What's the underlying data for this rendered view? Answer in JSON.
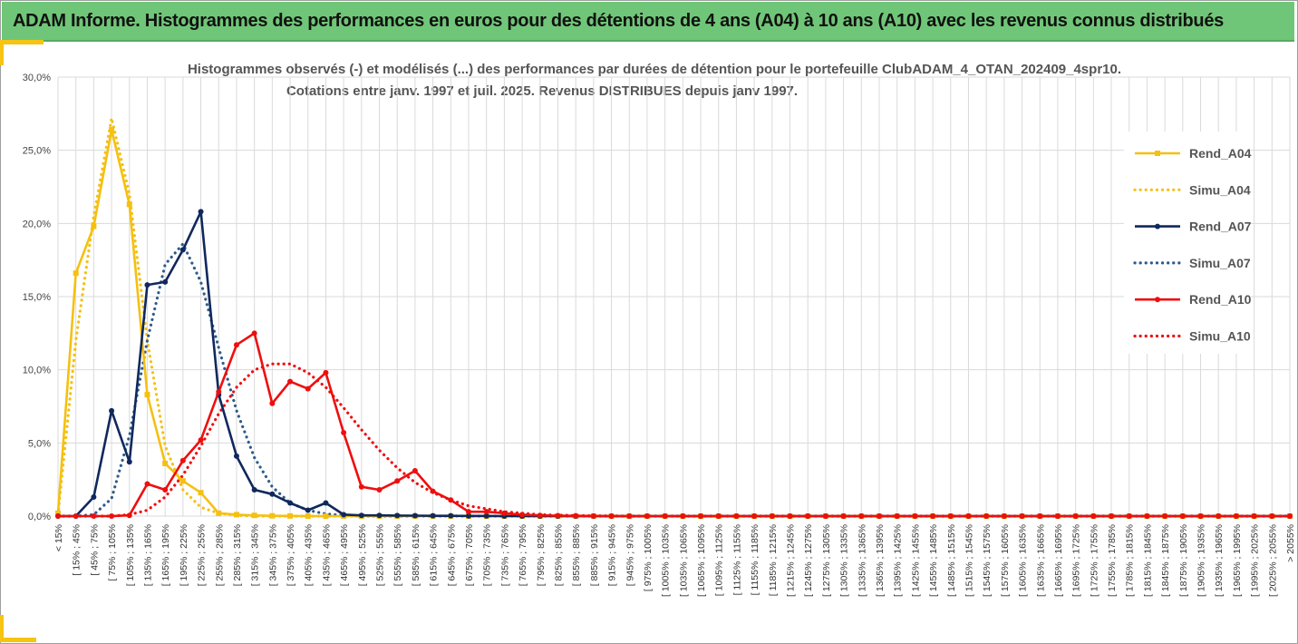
{
  "banner": {
    "title": "ADAM Informe. Histogrammes des performances en euros pour des détentions de 4 ans (A04) à 10 ans (A10) avec les revenus connus distribués"
  },
  "chart_data": {
    "type": "line",
    "title": "Histogrammes observés (-) et modélisés (...) des performances par durées de détention pour le portefeuille ClubADAM_4_OTAN_202409_4spr10.",
    "subtitle": "Cotations entre janv. 1997 et juil. 2025. Revenus DISTRIBUES depuis janv 1997.",
    "xlabel": "",
    "ylabel": "",
    "ylim": [
      0,
      0.3
    ],
    "y_ticks": [
      "0,0%",
      "5,0%",
      "10,0%",
      "15,0%",
      "20,0%",
      "25,0%",
      "30,0%"
    ],
    "grid": true,
    "legend_position": "right",
    "categories": [
      "< 15%",
      "[ 15% ; 45%",
      "[ 45% ; 75%",
      "[ 75% ; 105%",
      "[ 105% ; 135%",
      "[ 135% ; 165%",
      "[ 165% ; 195%",
      "[ 195% ; 225%",
      "[ 225% ; 255%",
      "[ 255% ; 285%",
      "[ 285% ; 315%",
      "[ 315% ; 345%",
      "[ 345% ; 375%",
      "[ 375% ; 405%",
      "[ 405% ; 435%",
      "[ 435% ; 465%",
      "[ 465% ; 495%",
      "[ 495% ; 525%",
      "[ 525% ; 555%",
      "[ 555% ; 585%",
      "[ 585% ; 615%",
      "[ 615% ; 645%",
      "[ 645% ; 675%",
      "[ 675% ; 705%",
      "[ 705% ; 735%",
      "[ 735% ; 765%",
      "[ 765% ; 795%",
      "[ 795% ; 825%",
      "[ 825% ; 855%",
      "[ 855% ; 885%",
      "[ 885% ; 915%",
      "[ 915% ; 945%",
      "[ 945% ; 975%",
      "[ 975% ; 1005%",
      "[ 1005% ; 1035%",
      "[ 1035% ; 1065%",
      "[ 1065% ; 1095%",
      "[ 1095% ; 1125%",
      "[ 1125% ; 1155%",
      "[ 1155% ; 1185%",
      "[ 1185% ; 1215%",
      "[ 1215% ; 1245%",
      "[ 1245% ; 1275%",
      "[ 1275% ; 1305%",
      "[ 1305% ; 1335%",
      "[ 1335% ; 1365%",
      "[ 1365% ; 1395%",
      "[ 1395% ; 1425%",
      "[ 1425% ; 1455%",
      "[ 1455% ; 1485%",
      "[ 1485% ; 1515%",
      "[ 1515% ; 1545%",
      "[ 1545% ; 1575%",
      "[ 1575% ; 1605%",
      "[ 1605% ; 1635%",
      "[ 1635% ; 1665%",
      "[ 1665% ; 1695%",
      "[ 1695% ; 1725%",
      "[ 1725% ; 1755%",
      "[ 1755% ; 1785%",
      "[ 1785% ; 1815%",
      "[ 1815% ; 1845%",
      "[ 1845% ; 1875%",
      "[ 1875% ; 1905%",
      "[ 1905% ; 1935%",
      "[ 1935% ; 1965%",
      "[ 1965% ; 1995%",
      "[ 1995% ; 2025%",
      "[ 2025% ; 2055%",
      "> 2055%"
    ],
    "series": [
      {
        "name": "Rend_A04",
        "style": "solid",
        "marker": "square",
        "color": "#f5c011",
        "values": [
          0.002,
          0.166,
          0.198,
          0.264,
          0.213,
          0.083,
          0.036,
          0.024,
          0.016,
          0.002,
          0.001,
          0.0005,
          0.0002,
          0.0001,
          0,
          0,
          0,
          0,
          0,
          0,
          0,
          0,
          0,
          0,
          0,
          0,
          0,
          0,
          0,
          0,
          0,
          0,
          0,
          0,
          0,
          0,
          0,
          0,
          0,
          0,
          0,
          0,
          0,
          0,
          0,
          0,
          0,
          0,
          0,
          0,
          0,
          0,
          0,
          0,
          0,
          0,
          0,
          0,
          0,
          0,
          0,
          0,
          0,
          0,
          0,
          0,
          0,
          0,
          0,
          0
        ]
      },
      {
        "name": "Simu_A04",
        "style": "dotted",
        "marker": "none",
        "color": "#f5c011",
        "values": [
          0.001,
          0.12,
          0.205,
          0.272,
          0.22,
          0.12,
          0.048,
          0.018,
          0.006,
          0.002,
          0.0005,
          0,
          0,
          0,
          0,
          0,
          0,
          0,
          0,
          0,
          0,
          0,
          0,
          0,
          0,
          0,
          0,
          0,
          0,
          0,
          0,
          0,
          0,
          0,
          0,
          0,
          0,
          0,
          0,
          0,
          0,
          0,
          0,
          0,
          0,
          0,
          0,
          0,
          0,
          0,
          0,
          0,
          0,
          0,
          0,
          0,
          0,
          0,
          0,
          0,
          0,
          0,
          0,
          0,
          0,
          0,
          0,
          0,
          0,
          0
        ]
      },
      {
        "name": "Rend_A07",
        "style": "solid",
        "marker": "circle",
        "color": "#10285c",
        "values": [
          0,
          0,
          0.013,
          0.072,
          0.037,
          0.158,
          0.16,
          0.182,
          0.208,
          0.083,
          0.041,
          0.018,
          0.015,
          0.009,
          0.004,
          0.009,
          0.001,
          0.0005,
          0.0005,
          0.0004,
          0.0003,
          0.0002,
          0.0002,
          0.0001,
          0.0001,
          0,
          0,
          0,
          0,
          0,
          0,
          0,
          0,
          0,
          0,
          0,
          0,
          0,
          0,
          0,
          0,
          0,
          0,
          0,
          0,
          0,
          0,
          0,
          0,
          0,
          0,
          0,
          0,
          0,
          0,
          0,
          0,
          0,
          0,
          0,
          0,
          0,
          0,
          0,
          0,
          0,
          0,
          0,
          0,
          0
        ]
      },
      {
        "name": "Simu_A07",
        "style": "dotted",
        "marker": "none",
        "color": "#2d5b8a",
        "values": [
          0,
          0,
          0.001,
          0.012,
          0.055,
          0.12,
          0.172,
          0.186,
          0.16,
          0.115,
          0.072,
          0.04,
          0.02,
          0.009,
          0.004,
          0.0015,
          0.0005,
          0.0002,
          0,
          0,
          0,
          0,
          0,
          0,
          0,
          0,
          0,
          0,
          0,
          0,
          0,
          0,
          0,
          0,
          0,
          0,
          0,
          0,
          0,
          0,
          0,
          0,
          0,
          0,
          0,
          0,
          0,
          0,
          0,
          0,
          0,
          0,
          0,
          0,
          0,
          0,
          0,
          0,
          0,
          0,
          0,
          0,
          0,
          0,
          0,
          0,
          0,
          0,
          0,
          0
        ]
      },
      {
        "name": "Rend_A10",
        "style": "solid",
        "marker": "circle",
        "color": "#ee0e0e",
        "values": [
          0,
          0,
          0,
          0,
          0.0005,
          0.022,
          0.018,
          0.038,
          0.052,
          0.085,
          0.117,
          0.125,
          0.077,
          0.092,
          0.087,
          0.098,
          0.057,
          0.02,
          0.018,
          0.024,
          0.031,
          0.017,
          0.011,
          0.003,
          0.003,
          0.002,
          0.001,
          0.0005,
          0.0003,
          0.0002,
          0.0001,
          0,
          0,
          0,
          0,
          0,
          0,
          0,
          0,
          0,
          0,
          0,
          0,
          0,
          0,
          0,
          0,
          0,
          0,
          0,
          0,
          0,
          0,
          0,
          0,
          0,
          0,
          0,
          0,
          0,
          0,
          0,
          0,
          0,
          0,
          0,
          0,
          0,
          0,
          0
        ]
      },
      {
        "name": "Simu_A10",
        "style": "dotted",
        "marker": "none",
        "color": "#ee0e0e",
        "values": [
          0,
          0,
          0,
          0,
          0.001,
          0.004,
          0.013,
          0.028,
          0.048,
          0.07,
          0.088,
          0.1,
          0.104,
          0.104,
          0.098,
          0.088,
          0.074,
          0.059,
          0.045,
          0.033,
          0.023,
          0.016,
          0.011,
          0.007,
          0.005,
          0.003,
          0.002,
          0.001,
          0.0007,
          0.0004,
          0.0002,
          0.0001,
          0,
          0,
          0,
          0,
          0,
          0,
          0,
          0,
          0,
          0,
          0,
          0,
          0,
          0,
          0,
          0,
          0,
          0,
          0,
          0,
          0,
          0,
          0,
          0,
          0,
          0,
          0,
          0,
          0,
          0,
          0,
          0,
          0,
          0,
          0,
          0,
          0,
          0
        ]
      }
    ]
  }
}
